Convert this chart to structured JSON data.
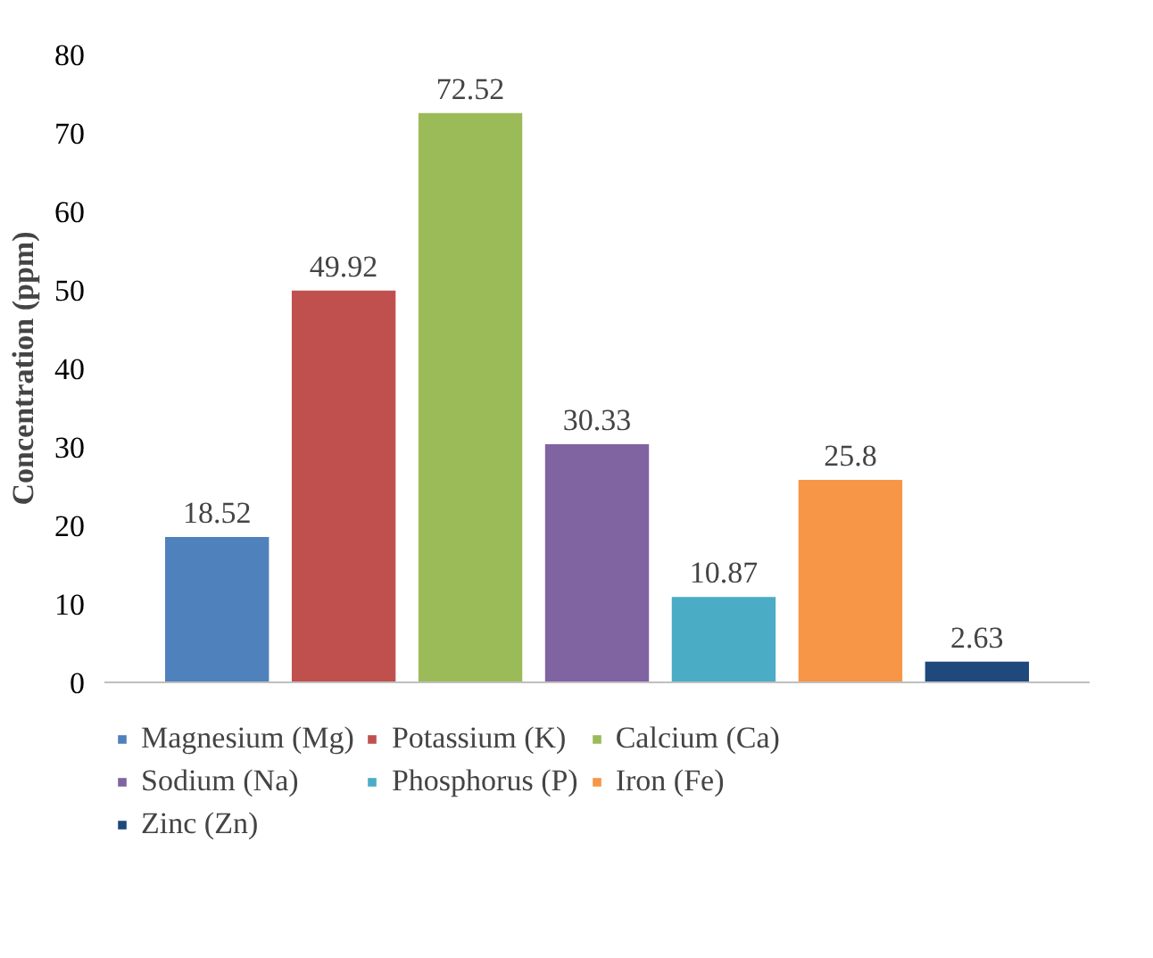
{
  "chart_data": {
    "type": "bar",
    "ylabel": "Concentration (ppm)",
    "categories": [
      null
    ],
    "series": [
      {
        "name": "Magnesium (Mg)",
        "color": "#4f81bd",
        "values": [
          18.52
        ]
      },
      {
        "name": "Potassium (K)",
        "color": "#c0504d",
        "values": [
          49.92
        ]
      },
      {
        "name": "Calcium (Ca)",
        "color": "#9bbb59",
        "values": [
          72.52
        ]
      },
      {
        "name": "Sodium (Na)",
        "color": "#8064a2",
        "values": [
          30.33
        ]
      },
      {
        "name": "Phosphorus (P)",
        "color": "#4bacc6",
        "values": [
          10.87
        ]
      },
      {
        "name": "Iron (Fe)",
        "color": "#f79646",
        "values": [
          25.8
        ]
      },
      {
        "name": "Zinc (Zn)",
        "color": "#1f497d",
        "values": [
          2.63
        ]
      }
    ],
    "ylim": [
      0,
      80
    ],
    "yticks": [
      0,
      10,
      20,
      30,
      40,
      50,
      60,
      70,
      80
    ],
    "grid": false,
    "legend": "bottom",
    "data_labels": true
  }
}
